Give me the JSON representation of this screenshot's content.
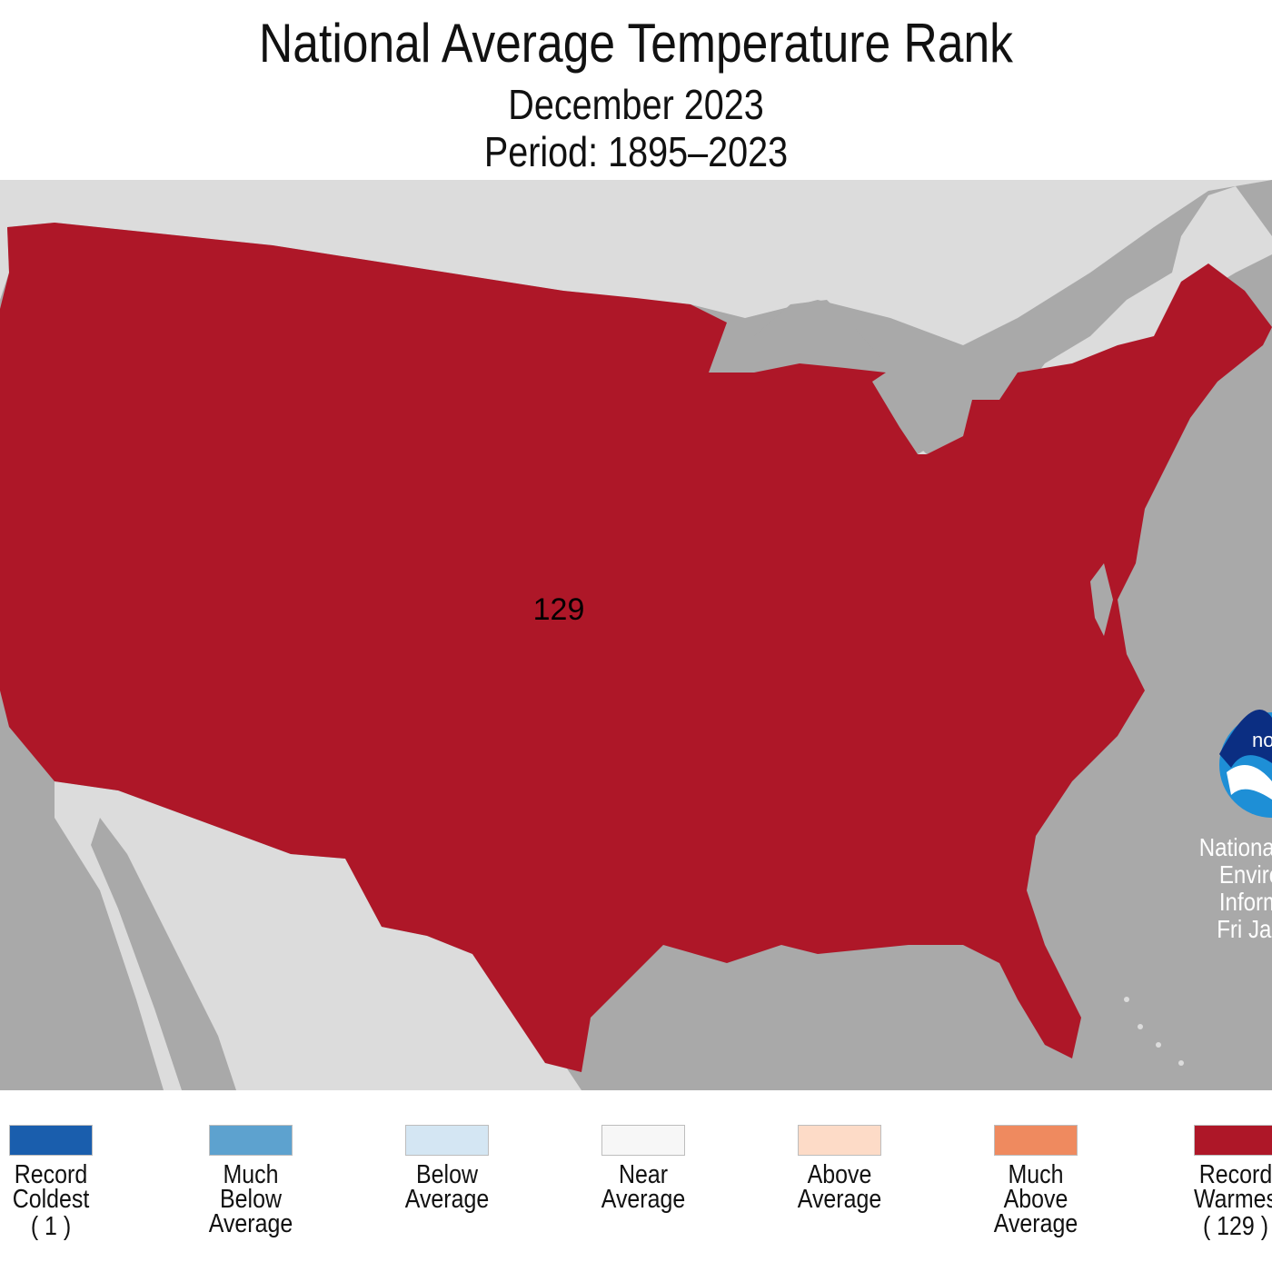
{
  "header": {
    "title": "National Average Temperature Rank",
    "subtitle_month": "December 2023",
    "subtitle_period": "Period: 1895–2023"
  },
  "map": {
    "rank_value": "129",
    "rank_category": "Record Warmest",
    "fill_color": "#AE1728",
    "land_color": "#DCDCDC",
    "water_color": "#A9A9A9"
  },
  "logo": {
    "name": "noaa-logo",
    "text": "noaa",
    "colors": {
      "blue": "#1E8FD6",
      "navy": "#0B2E82",
      "white": "#ffffff"
    }
  },
  "credit": {
    "lines": [
      "National C",
      "Enviro",
      "Inform",
      "Fri Jan"
    ]
  },
  "legend": {
    "items": [
      {
        "lines": [
          "Record",
          "Coldest"
        ],
        "rank": "( 1 )",
        "color": "#1A5EAD"
      },
      {
        "lines": [
          "Much",
          "Below",
          "Average"
        ],
        "rank": "",
        "color": "#5DA2CF"
      },
      {
        "lines": [
          "Below",
          "Average"
        ],
        "rank": "",
        "color": "#D4E6F3"
      },
      {
        "lines": [
          "Near",
          "Average"
        ],
        "rank": "",
        "color": "#F7F7F7"
      },
      {
        "lines": [
          "Above",
          "Average"
        ],
        "rank": "",
        "color": "#FDDBC7"
      },
      {
        "lines": [
          "Much",
          "Above",
          "Average"
        ],
        "rank": "",
        "color": "#EF8A5F"
      },
      {
        "lines": [
          "Record",
          "Warmes"
        ],
        "rank": "( 129 )",
        "color": "#AE1728"
      }
    ]
  }
}
